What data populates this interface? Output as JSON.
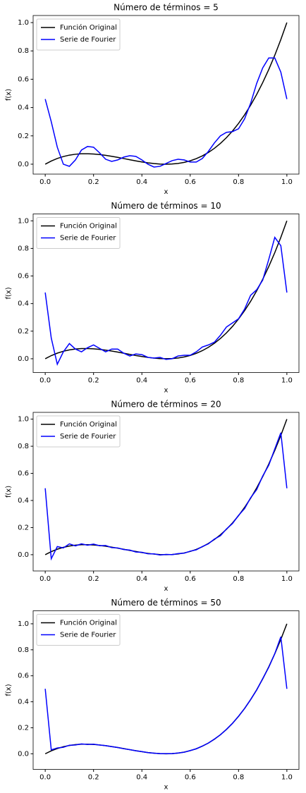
{
  "chart_data": [
    {
      "type": "line",
      "title": "Número de términos = 5",
      "x_label": "x",
      "y_label": "f(x)",
      "legend": "upper left",
      "grid": false,
      "x": [
        0,
        0.025,
        0.05,
        0.075,
        0.1,
        0.125,
        0.15,
        0.175,
        0.2,
        0.225,
        0.25,
        0.275,
        0.3,
        0.325,
        0.35,
        0.375,
        0.4,
        0.425,
        0.45,
        0.475,
        0.5,
        0.525,
        0.55,
        0.575,
        0.6,
        0.625,
        0.65,
        0.675,
        0.7,
        0.725,
        0.75,
        0.775,
        0.8,
        0.825,
        0.85,
        0.875,
        0.9,
        0.925,
        0.95,
        0.975,
        1
      ],
      "series": [
        {
          "name": "Función Original",
          "color": "#000000",
          "values": [
            0,
            0.0226,
            0.0405,
            0.0542,
            0.064,
            0.0703,
            0.0735,
            0.0739,
            0.072,
            0.0681,
            0.0625,
            0.0557,
            0.048,
            0.0398,
            0.0315,
            0.0234,
            0.016,
            0.0096,
            0.0045,
            0.0012,
            0,
            0.0013,
            0.0055,
            0.0129,
            0.024,
            0.0391,
            0.0585,
            0.0827,
            0.112,
            0.1468,
            0.1875,
            0.2344,
            0.288,
            0.3486,
            0.4165,
            0.4922,
            0.576,
            0.6683,
            0.7695,
            0.8799,
            1
          ]
        },
        {
          "name": "Serie de Fourier",
          "color": "#0000ff",
          "values": [
            0.46,
            0.3,
            0.12,
            0.0,
            -0.015,
            0.03,
            0.1,
            0.125,
            0.12,
            0.08,
            0.035,
            0.02,
            0.03,
            0.05,
            0.06,
            0.055,
            0.03,
            0.0,
            -0.02,
            -0.015,
            0.005,
            0.025,
            0.035,
            0.03,
            0.015,
            0.015,
            0.04,
            0.09,
            0.15,
            0.2,
            0.225,
            0.23,
            0.25,
            0.32,
            0.43,
            0.57,
            0.68,
            0.75,
            0.75,
            0.65,
            0.46
          ]
        }
      ],
      "xlim": [
        -0.05,
        1.05
      ],
      "ylim": [
        -0.07,
        1.05
      ],
      "xticks": [
        {
          "value": 0,
          "label": "0.0"
        },
        {
          "value": 0.2,
          "label": "0.2"
        },
        {
          "value": 0.4,
          "label": "0.4"
        },
        {
          "value": 0.6,
          "label": "0.6"
        },
        {
          "value": 0.8,
          "label": "0.8"
        },
        {
          "value": 1,
          "label": "1.0"
        }
      ],
      "yticks": [
        {
          "value": 0,
          "label": "0.0"
        },
        {
          "value": 0.2,
          "label": "0.2"
        },
        {
          "value": 0.4,
          "label": "0.4"
        },
        {
          "value": 0.6,
          "label": "0.6"
        },
        {
          "value": 0.8,
          "label": "0.8"
        },
        {
          "value": 1,
          "label": "1.0"
        }
      ]
    },
    {
      "type": "line",
      "title": "Número de términos = 10",
      "x_label": "x",
      "y_label": "f(x)",
      "legend": "upper left",
      "grid": false,
      "x": [
        0,
        0.025,
        0.05,
        0.075,
        0.1,
        0.125,
        0.15,
        0.175,
        0.2,
        0.225,
        0.25,
        0.275,
        0.3,
        0.325,
        0.35,
        0.375,
        0.4,
        0.425,
        0.45,
        0.475,
        0.5,
        0.525,
        0.55,
        0.575,
        0.6,
        0.625,
        0.65,
        0.675,
        0.7,
        0.725,
        0.75,
        0.775,
        0.8,
        0.825,
        0.85,
        0.875,
        0.9,
        0.925,
        0.95,
        0.975,
        1
      ],
      "series": [
        {
          "name": "Función Original",
          "color": "#000000",
          "values": [
            0,
            0.0226,
            0.0405,
            0.0542,
            0.064,
            0.0703,
            0.0735,
            0.0739,
            0.072,
            0.0681,
            0.0625,
            0.0557,
            0.048,
            0.0398,
            0.0315,
            0.0234,
            0.016,
            0.0096,
            0.0045,
            0.0012,
            0,
            0.0013,
            0.0055,
            0.0129,
            0.024,
            0.0391,
            0.0585,
            0.0827,
            0.112,
            0.1468,
            0.1875,
            0.2344,
            0.288,
            0.3486,
            0.4165,
            0.4922,
            0.576,
            0.6683,
            0.7695,
            0.8799,
            1
          ]
        },
        {
          "name": "Serie de Fourier",
          "color": "#0000ff",
          "values": [
            0.48,
            0.15,
            -0.04,
            0.05,
            0.11,
            0.07,
            0.05,
            0.08,
            0.1,
            0.075,
            0.05,
            0.07,
            0.07,
            0.04,
            0.02,
            0.035,
            0.03,
            0.01,
            0.005,
            0.01,
            -0.005,
            0.0,
            0.02,
            0.025,
            0.025,
            0.05,
            0.085,
            0.1,
            0.12,
            0.17,
            0.23,
            0.26,
            0.29,
            0.36,
            0.46,
            0.5,
            0.57,
            0.72,
            0.88,
            0.82,
            0.48
          ]
        }
      ],
      "xlim": [
        -0.05,
        1.05
      ],
      "ylim": [
        -0.1,
        1.05
      ],
      "xticks": [
        {
          "value": 0,
          "label": "0.0"
        },
        {
          "value": 0.2,
          "label": "0.2"
        },
        {
          "value": 0.4,
          "label": "0.4"
        },
        {
          "value": 0.6,
          "label": "0.6"
        },
        {
          "value": 0.8,
          "label": "0.8"
        },
        {
          "value": 1,
          "label": "1.0"
        }
      ],
      "yticks": [
        {
          "value": 0,
          "label": "0.0"
        },
        {
          "value": 0.2,
          "label": "0.2"
        },
        {
          "value": 0.4,
          "label": "0.4"
        },
        {
          "value": 0.6,
          "label": "0.6"
        },
        {
          "value": 0.8,
          "label": "0.8"
        },
        {
          "value": 1,
          "label": "1.0"
        }
      ]
    },
    {
      "type": "line",
      "title": "Número de términos = 20",
      "x_label": "x",
      "y_label": "f(x)",
      "legend": "upper left",
      "grid": false,
      "x": [
        0,
        0.025,
        0.05,
        0.075,
        0.1,
        0.125,
        0.15,
        0.175,
        0.2,
        0.225,
        0.25,
        0.275,
        0.3,
        0.325,
        0.35,
        0.375,
        0.4,
        0.425,
        0.45,
        0.475,
        0.5,
        0.525,
        0.55,
        0.575,
        0.6,
        0.625,
        0.65,
        0.675,
        0.7,
        0.725,
        0.75,
        0.775,
        0.8,
        0.825,
        0.85,
        0.875,
        0.9,
        0.925,
        0.95,
        0.975,
        1
      ],
      "series": [
        {
          "name": "Función Original",
          "color": "#000000",
          "values": [
            0,
            0.0226,
            0.0405,
            0.0542,
            0.064,
            0.0703,
            0.0735,
            0.0739,
            0.072,
            0.0681,
            0.0625,
            0.0557,
            0.048,
            0.0398,
            0.0315,
            0.0234,
            0.016,
            0.0096,
            0.0045,
            0.0012,
            0,
            0.0013,
            0.0055,
            0.0129,
            0.024,
            0.0391,
            0.0585,
            0.0827,
            0.112,
            0.1468,
            0.1875,
            0.2344,
            0.288,
            0.3486,
            0.4165,
            0.4922,
            0.576,
            0.6683,
            0.7695,
            0.8799,
            1
          ]
        },
        {
          "name": "Serie de Fourier",
          "color": "#0000ff",
          "values": [
            0.49,
            -0.03,
            0.06,
            0.05,
            0.08,
            0.065,
            0.08,
            0.07,
            0.078,
            0.066,
            0.068,
            0.052,
            0.05,
            0.038,
            0.034,
            0.02,
            0.018,
            0.007,
            0.006,
            -0.002,
            0.002,
            0.0,
            0.008,
            0.011,
            0.026,
            0.036,
            0.06,
            0.08,
            0.115,
            0.14,
            0.19,
            0.23,
            0.29,
            0.34,
            0.42,
            0.48,
            0.58,
            0.66,
            0.78,
            0.9,
            0.49
          ]
        }
      ],
      "xlim": [
        -0.05,
        1.05
      ],
      "ylim": [
        -0.12,
        1.05
      ],
      "xticks": [
        {
          "value": 0,
          "label": "0.0"
        },
        {
          "value": 0.2,
          "label": "0.2"
        },
        {
          "value": 0.4,
          "label": "0.4"
        },
        {
          "value": 0.6,
          "label": "0.6"
        },
        {
          "value": 0.8,
          "label": "0.8"
        },
        {
          "value": 1,
          "label": "1.0"
        }
      ],
      "yticks": [
        {
          "value": 0,
          "label": "0.0"
        },
        {
          "value": 0.2,
          "label": "0.2"
        },
        {
          "value": 0.4,
          "label": "0.4"
        },
        {
          "value": 0.6,
          "label": "0.6"
        },
        {
          "value": 0.8,
          "label": "0.8"
        },
        {
          "value": 1,
          "label": "1.0"
        }
      ]
    },
    {
      "type": "line",
      "title": "Número de términos = 50",
      "x_label": "x",
      "y_label": "f(x)",
      "legend": "upper left",
      "grid": false,
      "x": [
        0,
        0.025,
        0.05,
        0.075,
        0.1,
        0.125,
        0.15,
        0.175,
        0.2,
        0.225,
        0.25,
        0.275,
        0.3,
        0.325,
        0.35,
        0.375,
        0.4,
        0.425,
        0.45,
        0.475,
        0.5,
        0.525,
        0.55,
        0.575,
        0.6,
        0.625,
        0.65,
        0.675,
        0.7,
        0.725,
        0.75,
        0.775,
        0.8,
        0.825,
        0.85,
        0.875,
        0.9,
        0.925,
        0.95,
        0.975,
        1
      ],
      "series": [
        {
          "name": "Función Original",
          "color": "#000000",
          "values": [
            0,
            0.0226,
            0.0405,
            0.0542,
            0.064,
            0.0703,
            0.0735,
            0.0739,
            0.072,
            0.0681,
            0.0625,
            0.0557,
            0.048,
            0.0398,
            0.0315,
            0.0234,
            0.016,
            0.0096,
            0.0045,
            0.0012,
            0,
            0.0013,
            0.0055,
            0.0129,
            0.024,
            0.0391,
            0.0585,
            0.0827,
            0.112,
            0.1468,
            0.1875,
            0.2344,
            0.288,
            0.3486,
            0.4165,
            0.4922,
            0.576,
            0.6683,
            0.7695,
            0.8799,
            1
          ]
        },
        {
          "name": "Serie de Fourier",
          "color": "#0000ff",
          "values": [
            0.5,
            0.03,
            0.045,
            0.05,
            0.066,
            0.068,
            0.076,
            0.072,
            0.074,
            0.067,
            0.063,
            0.055,
            0.049,
            0.039,
            0.032,
            0.023,
            0.017,
            0.009,
            0.005,
            0.001,
            0.001,
            0.001,
            0.006,
            0.012,
            0.025,
            0.038,
            0.059,
            0.082,
            0.113,
            0.146,
            0.188,
            0.234,
            0.289,
            0.348,
            0.417,
            0.49,
            0.578,
            0.665,
            0.77,
            0.9,
            0.5
          ]
        }
      ],
      "xlim": [
        -0.05,
        1.05
      ],
      "ylim": [
        -0.12,
        1.1
      ],
      "xticks": [
        {
          "value": 0,
          "label": "0.0"
        },
        {
          "value": 0.2,
          "label": "0.2"
        },
        {
          "value": 0.4,
          "label": "0.4"
        },
        {
          "value": 0.6,
          "label": "0.6"
        },
        {
          "value": 0.8,
          "label": "0.8"
        },
        {
          "value": 1,
          "label": "1.0"
        }
      ],
      "yticks": [
        {
          "value": 0,
          "label": "0.0"
        },
        {
          "value": 0.2,
          "label": "0.2"
        },
        {
          "value": 0.4,
          "label": "0.4"
        },
        {
          "value": 0.6,
          "label": "0.6"
        },
        {
          "value": 0.8,
          "label": "0.8"
        },
        {
          "value": 1,
          "label": "1.0"
        }
      ]
    }
  ]
}
